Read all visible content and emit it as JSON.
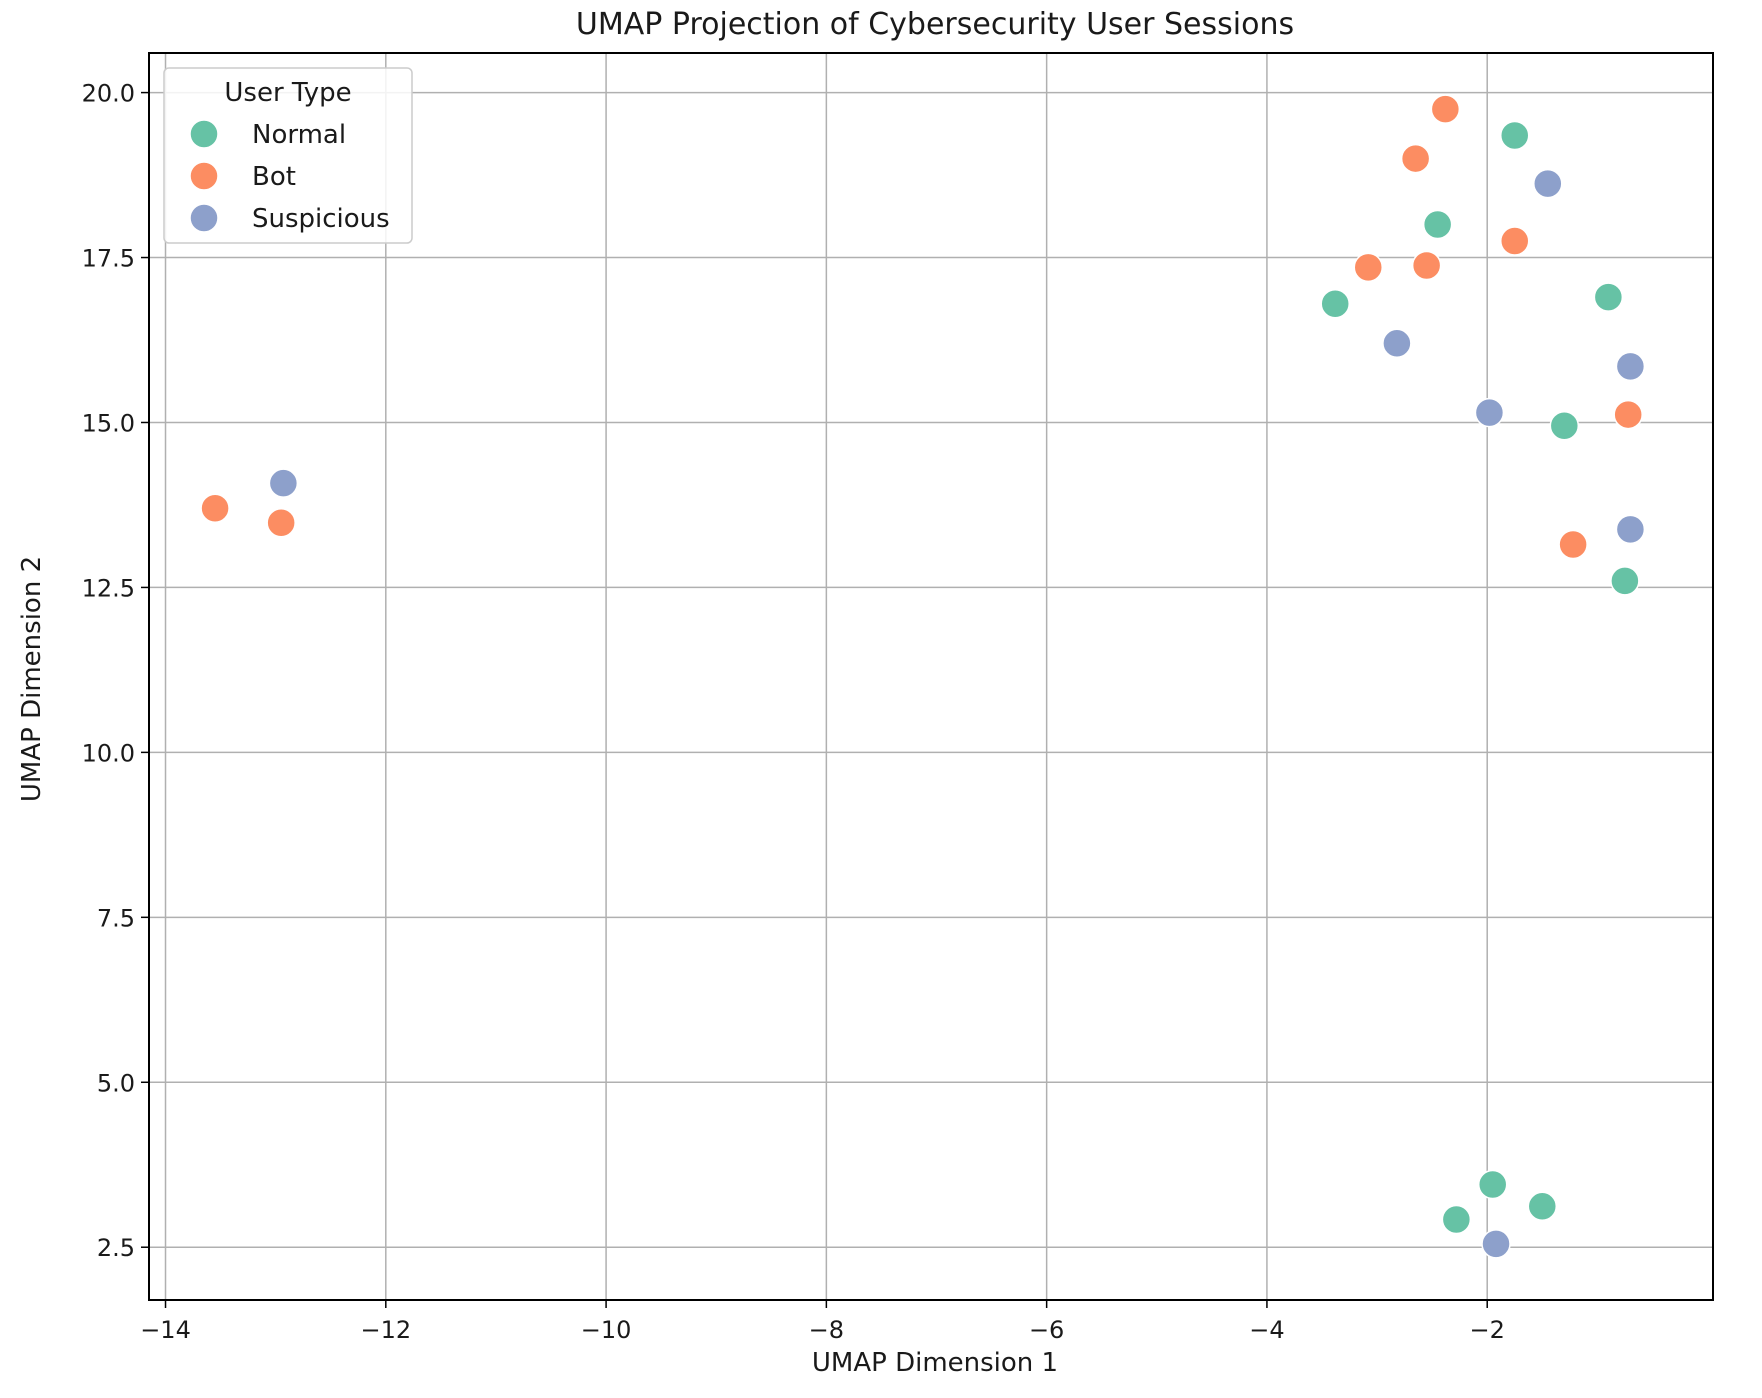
{
  "chart_data": {
    "type": "scatter",
    "title": "UMAP Projection of Cybersecurity User Sessions",
    "xlabel": "UMAP Dimension 1",
    "ylabel": "UMAP Dimension 2",
    "xlim": [
      -14.15,
      0.05
    ],
    "ylim": [
      1.7,
      20.6
    ],
    "x_ticks": [
      -14,
      -12,
      -10,
      -8,
      -6,
      -4,
      -2
    ],
    "x_tick_labels": [
      "−14",
      "−12",
      "−10",
      "−8",
      "−6",
      "−4",
      "−2"
    ],
    "y_ticks": [
      2.5,
      5.0,
      7.5,
      10.0,
      12.5,
      15.0,
      17.5,
      20.0
    ],
    "y_tick_labels": [
      "2.5",
      "5.0",
      "7.5",
      "10.0",
      "12.5",
      "15.0",
      "17.5",
      "20.0"
    ],
    "grid": true,
    "legend": {
      "title": "User Type",
      "placement": "top-left"
    },
    "series": [
      {
        "name": "Normal",
        "color": "#66c2a5",
        "points": [
          {
            "x": -1.75,
            "y": 19.35
          },
          {
            "x": -2.45,
            "y": 18.0
          },
          {
            "x": -0.9,
            "y": 16.9
          },
          {
            "x": -3.38,
            "y": 16.8
          },
          {
            "x": -1.3,
            "y": 14.95
          },
          {
            "x": -0.75,
            "y": 12.6
          },
          {
            "x": -1.95,
            "y": 3.45
          },
          {
            "x": -1.5,
            "y": 3.12
          },
          {
            "x": -2.28,
            "y": 2.92
          }
        ]
      },
      {
        "name": "Bot",
        "color": "#fc8d62",
        "points": [
          {
            "x": -2.38,
            "y": 19.75
          },
          {
            "x": -2.65,
            "y": 19.0
          },
          {
            "x": -1.75,
            "y": 17.75
          },
          {
            "x": -3.08,
            "y": 17.35
          },
          {
            "x": -2.55,
            "y": 17.38
          },
          {
            "x": -0.72,
            "y": 15.12
          },
          {
            "x": -1.22,
            "y": 13.15
          },
          {
            "x": -13.55,
            "y": 13.7
          },
          {
            "x": -12.95,
            "y": 13.48
          }
        ]
      },
      {
        "name": "Suspicious",
        "color": "#8da0cb",
        "points": [
          {
            "x": -1.45,
            "y": 18.62
          },
          {
            "x": -2.82,
            "y": 16.2
          },
          {
            "x": -0.7,
            "y": 15.85
          },
          {
            "x": -1.98,
            "y": 15.15
          },
          {
            "x": -0.7,
            "y": 13.38
          },
          {
            "x": -12.93,
            "y": 14.08
          },
          {
            "x": -1.92,
            "y": 2.55
          }
        ]
      }
    ]
  }
}
